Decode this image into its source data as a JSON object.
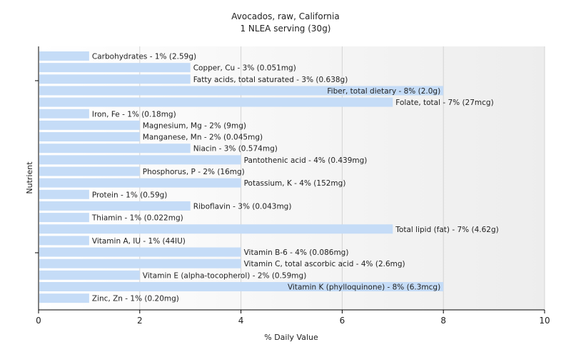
{
  "chart_data": {
    "type": "bar",
    "orientation": "horizontal",
    "title": "Avocados, raw, California",
    "subtitle": "1 NLEA serving (30g)",
    "xlabel": "% Daily Value",
    "ylabel": "Nutrient",
    "xlim": [
      0,
      10
    ],
    "xticks": [
      "0",
      "2",
      "4",
      "6",
      "8",
      "10"
    ],
    "grid": true,
    "legend": "none",
    "bar_color": "#c5dcf7",
    "categories": [
      "Carbohydrates",
      "Copper, Cu",
      "Fatty acids, total saturated",
      "Fiber, total dietary",
      "Folate, total",
      "Iron, Fe",
      "Magnesium, Mg",
      "Manganese, Mn",
      "Niacin",
      "Pantothenic acid",
      "Phosphorus, P",
      "Potassium, K",
      "Protein",
      "Riboflavin",
      "Thiamin",
      "Total lipid (fat)",
      "Vitamin A, IU",
      "Vitamin B-6",
      "Vitamin C, total ascorbic acid",
      "Vitamin E (alpha-tocopherol)",
      "Vitamin K (phylloquinone)",
      "Zinc, Zn"
    ],
    "values": [
      1,
      3,
      3,
      8,
      7,
      1,
      2,
      2,
      3,
      4,
      2,
      4,
      1,
      3,
      1,
      7,
      1,
      4,
      4,
      2,
      8,
      1
    ],
    "labels": [
      "Carbohydrates - 1% (2.59g)",
      "Copper, Cu - 3% (0.051mg)",
      "Fatty acids, total saturated - 3% (0.638g)",
      "Fiber, total dietary - 8% (2.0g)",
      "Folate, total - 7% (27mcg)",
      "Iron, Fe - 1% (0.18mg)",
      "Magnesium, Mg - 2% (9mg)",
      "Manganese, Mn - 2% (0.045mg)",
      "Niacin - 3% (0.574mg)",
      "Pantothenic acid - 4% (0.439mg)",
      "Phosphorus, P - 2% (16mg)",
      "Potassium, K - 4% (152mg)",
      "Protein - 1% (0.59g)",
      "Riboflavin - 3% (0.043mg)",
      "Thiamin - 1% (0.022mg)",
      "Total lipid (fat) - 7% (4.62g)",
      "Vitamin A, IU - 1% (44IU)",
      "Vitamin B-6 - 4% (0.086mg)",
      "Vitamin C, total ascorbic acid - 4% (2.6mg)",
      "Vitamin E (alpha-tocopherol) - 2% (0.59mg)",
      "Vitamin K (phylloquinone) - 8% (6.3mcg)",
      "Zinc, Zn - 1% (0.20mg)"
    ]
  }
}
